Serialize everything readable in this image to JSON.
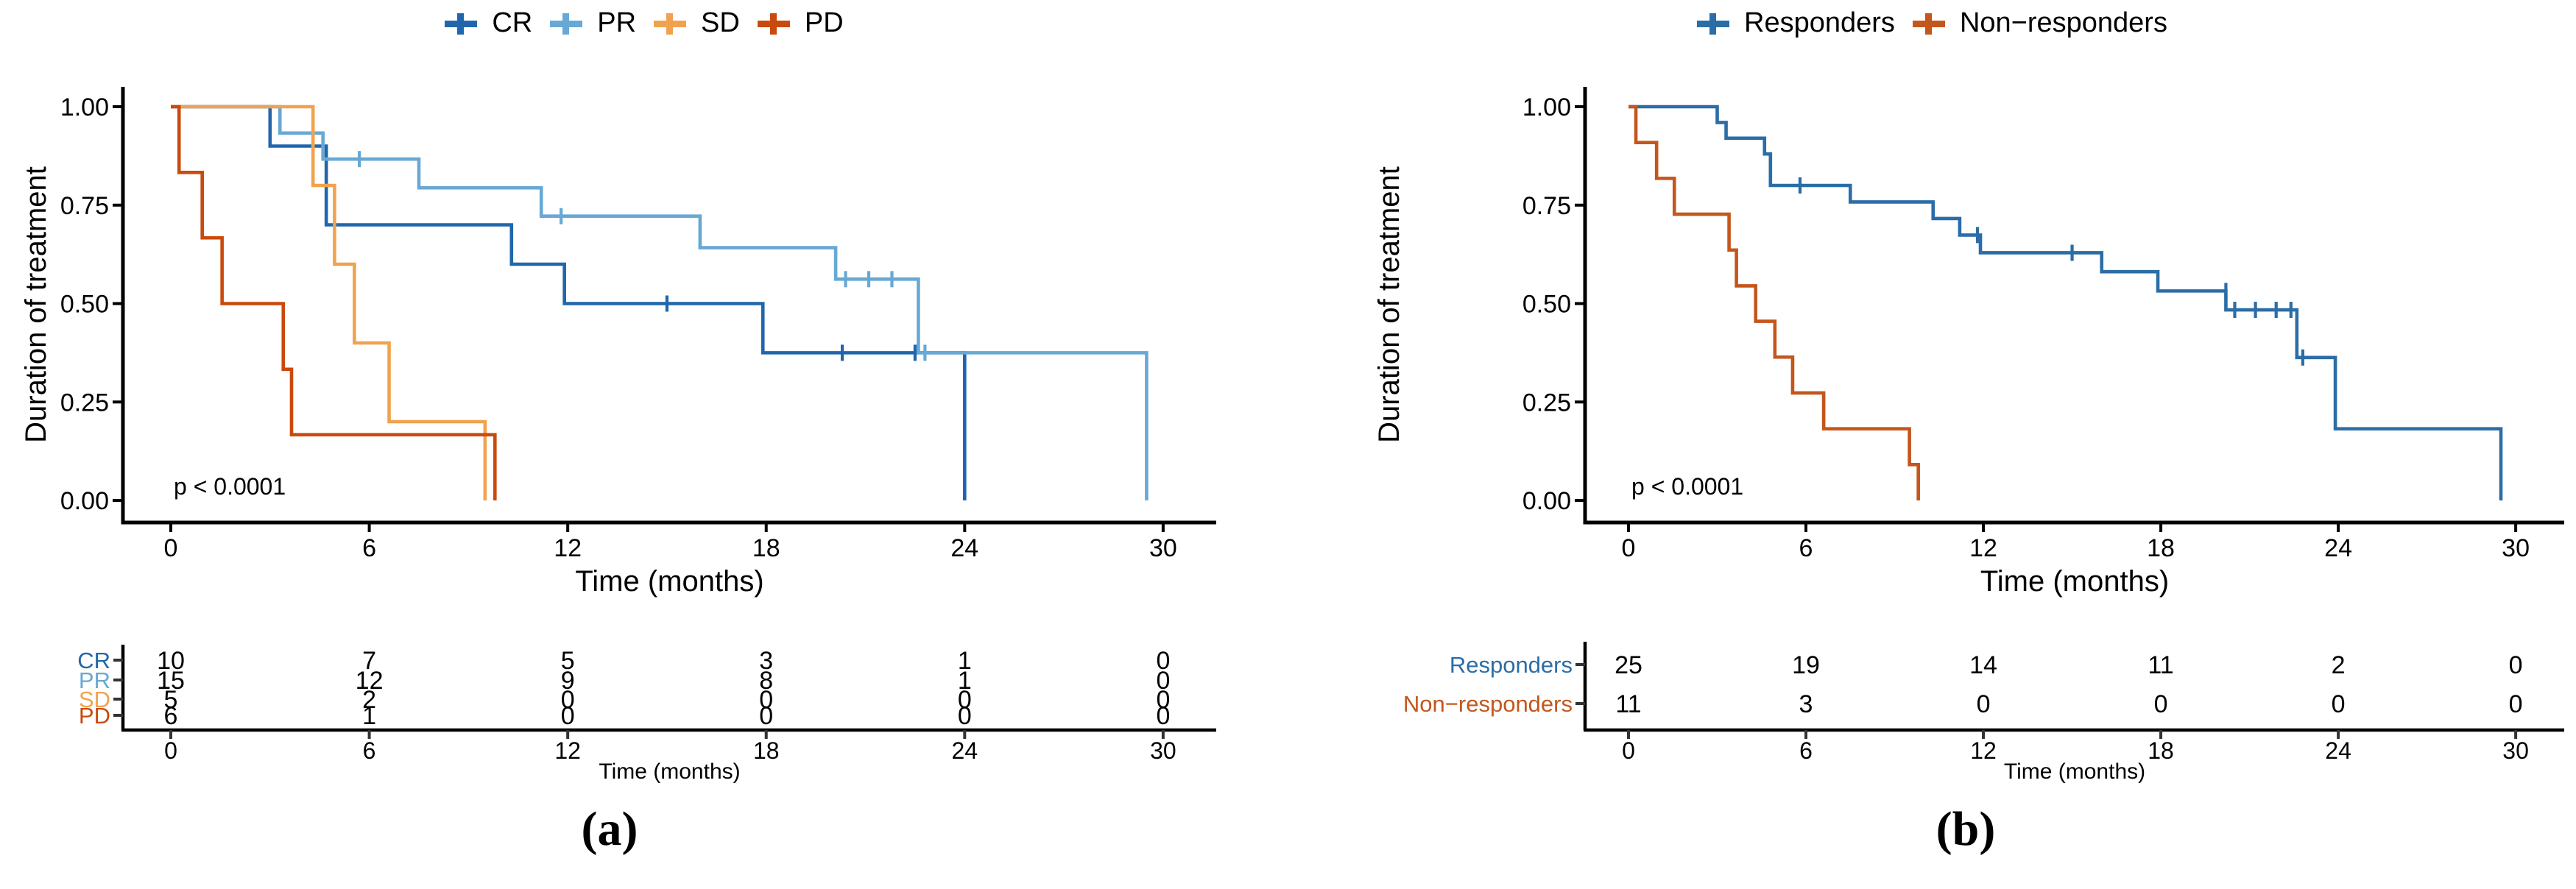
{
  "figure": {
    "background": "#ffffff",
    "panels": [
      {
        "caption": "(a)",
        "ylabel": "Duration of treatment",
        "xlabel": "Time (months)",
        "pvalue": "p < 0.0001",
        "yticks": [
          "1.00",
          "0.75",
          "0.50",
          "0.25",
          "0.00"
        ],
        "xticks": [
          0,
          6,
          12,
          18,
          24,
          30
        ],
        "legend": [
          {
            "label": "CR",
            "color": "#2166ac"
          },
          {
            "label": "PR",
            "color": "#68a8d4"
          },
          {
            "label": "SD",
            "color": "#f1a24f"
          },
          {
            "label": "PD",
            "color": "#ca4a0d"
          }
        ],
        "risk_table": {
          "xlabel": "Time (months)",
          "times": [
            0,
            6,
            12,
            18,
            24,
            30
          ],
          "rows": [
            {
              "label": "CR",
              "color": "#2166ac",
              "counts": [
                10,
                7,
                5,
                3,
                1,
                0
              ]
            },
            {
              "label": "PR",
              "color": "#68a8d4",
              "counts": [
                15,
                12,
                9,
                8,
                1,
                0
              ]
            },
            {
              "label": "SD",
              "color": "#f1a24f",
              "counts": [
                5,
                2,
                0,
                0,
                0,
                0
              ]
            },
            {
              "label": "PD",
              "color": "#ca4a0d",
              "counts": [
                6,
                1,
                0,
                0,
                0,
                0
              ]
            }
          ]
        }
      },
      {
        "caption": "(b)",
        "ylabel": "Duration of treatment",
        "xlabel": "Time (months)",
        "pvalue": "p < 0.0001",
        "yticks": [
          "1.00",
          "0.75",
          "0.50",
          "0.25",
          "0.00"
        ],
        "xticks": [
          0,
          6,
          12,
          18,
          24,
          30
        ],
        "legend": [
          {
            "label": "Responders",
            "color": "#2b6da6"
          },
          {
            "label": "Non−responders",
            "color": "#c4561c"
          }
        ],
        "risk_table": {
          "xlabel": "Time (months)",
          "times": [
            0,
            6,
            12,
            18,
            24,
            30
          ],
          "rows": [
            {
              "label": "Responders",
              "color": "#2b6da6",
              "counts": [
                25,
                19,
                14,
                11,
                2,
                0
              ]
            },
            {
              "label": "Non−responders",
              "color": "#c4561c",
              "counts": [
                11,
                3,
                0,
                0,
                0,
                0
              ]
            }
          ]
        }
      }
    ]
  },
  "chart_data": [
    {
      "type": "line",
      "subtype": "kaplan-meier-step",
      "title": "",
      "xlabel": "Time (months)",
      "ylabel": "Duration of treatment",
      "xlim": [
        0,
        30
      ],
      "ylim": [
        0,
        1
      ],
      "xticks": [
        0,
        6,
        12,
        18,
        24,
        30
      ],
      "yticks": [
        1.0,
        0.75,
        0.5,
        0.25,
        0.0
      ],
      "annotation": "p < 0.0001",
      "legend_position": "top",
      "grid": false,
      "series": [
        {
          "name": "CR",
          "color": "#2166ac",
          "steps": [
            [
              0,
              1.0
            ],
            [
              3.0,
              0.9
            ],
            [
              4.7,
              0.7
            ],
            [
              10.3,
              0.6
            ],
            [
              11.9,
              0.5
            ],
            [
              17.9,
              0.375
            ],
            [
              24.0,
              0.0
            ]
          ],
          "censors": [
            [
              15.0,
              0.5
            ],
            [
              20.3,
              0.375
            ],
            [
              22.5,
              0.375
            ]
          ]
        },
        {
          "name": "PR",
          "color": "#68a8d4",
          "steps": [
            [
              0,
              1.0
            ],
            [
              3.3,
              0.933
            ],
            [
              4.6,
              0.867
            ],
            [
              7.5,
              0.794
            ],
            [
              11.2,
              0.722
            ],
            [
              16.0,
              0.642
            ],
            [
              20.1,
              0.562
            ],
            [
              22.6,
              0.375
            ],
            [
              29.5,
              0.0
            ]
          ],
          "censors": [
            [
              5.7,
              0.867
            ],
            [
              11.8,
              0.722
            ],
            [
              20.4,
              0.562
            ],
            [
              21.1,
              0.562
            ],
            [
              21.8,
              0.562
            ],
            [
              22.8,
              0.375
            ]
          ]
        },
        {
          "name": "SD",
          "color": "#f1a24f",
          "steps": [
            [
              0,
              1.0
            ],
            [
              4.3,
              0.8
            ],
            [
              4.95,
              0.6
            ],
            [
              5.55,
              0.4
            ],
            [
              6.6,
              0.2
            ],
            [
              9.5,
              0.0
            ]
          ],
          "censors": []
        },
        {
          "name": "PD",
          "color": "#ca4a0d",
          "steps": [
            [
              0,
              1.0
            ],
            [
              0.25,
              0.833
            ],
            [
              0.95,
              0.667
            ],
            [
              1.55,
              0.5
            ],
            [
              3.4,
              0.333
            ],
            [
              3.65,
              0.167
            ],
            [
              9.8,
              0.0
            ]
          ],
          "censors": []
        }
      ]
    },
    {
      "type": "line",
      "subtype": "kaplan-meier-step",
      "title": "",
      "xlabel": "Time (months)",
      "ylabel": "Duration of treatment",
      "xlim": [
        0,
        30
      ],
      "ylim": [
        0,
        1
      ],
      "xticks": [
        0,
        6,
        12,
        18,
        24,
        30
      ],
      "yticks": [
        1.0,
        0.75,
        0.5,
        0.25,
        0.0
      ],
      "annotation": "p < 0.0001",
      "legend_position": "top",
      "grid": false,
      "series": [
        {
          "name": "Responders",
          "color": "#2b6da6",
          "steps": [
            [
              0,
              1.0
            ],
            [
              3.0,
              0.96
            ],
            [
              3.3,
              0.92
            ],
            [
              4.6,
              0.88
            ],
            [
              4.8,
              0.8
            ],
            [
              7.5,
              0.758
            ],
            [
              10.3,
              0.716
            ],
            [
              11.2,
              0.674
            ],
            [
              11.9,
              0.629
            ],
            [
              16.0,
              0.581
            ],
            [
              17.9,
              0.532
            ],
            [
              20.2,
              0.484
            ],
            [
              22.6,
              0.363
            ],
            [
              23.9,
              0.182
            ],
            [
              29.5,
              0.0
            ]
          ],
          "censors": [
            [
              5.8,
              0.8
            ],
            [
              11.8,
              0.674
            ],
            [
              15.0,
              0.629
            ],
            [
              20.2,
              0.532
            ],
            [
              20.5,
              0.484
            ],
            [
              21.2,
              0.484
            ],
            [
              21.9,
              0.484
            ],
            [
              22.4,
              0.484
            ],
            [
              22.8,
              0.363
            ]
          ]
        },
        {
          "name": "Non−responders",
          "color": "#c4561c",
          "steps": [
            [
              0,
              1.0
            ],
            [
              0.25,
              0.909
            ],
            [
              0.95,
              0.818
            ],
            [
              1.55,
              0.727
            ],
            [
              3.4,
              0.636
            ],
            [
              3.65,
              0.545
            ],
            [
              4.3,
              0.455
            ],
            [
              4.95,
              0.364
            ],
            [
              5.55,
              0.273
            ],
            [
              6.6,
              0.182
            ],
            [
              9.5,
              0.091
            ],
            [
              9.8,
              0.0
            ]
          ],
          "censors": []
        }
      ]
    }
  ]
}
